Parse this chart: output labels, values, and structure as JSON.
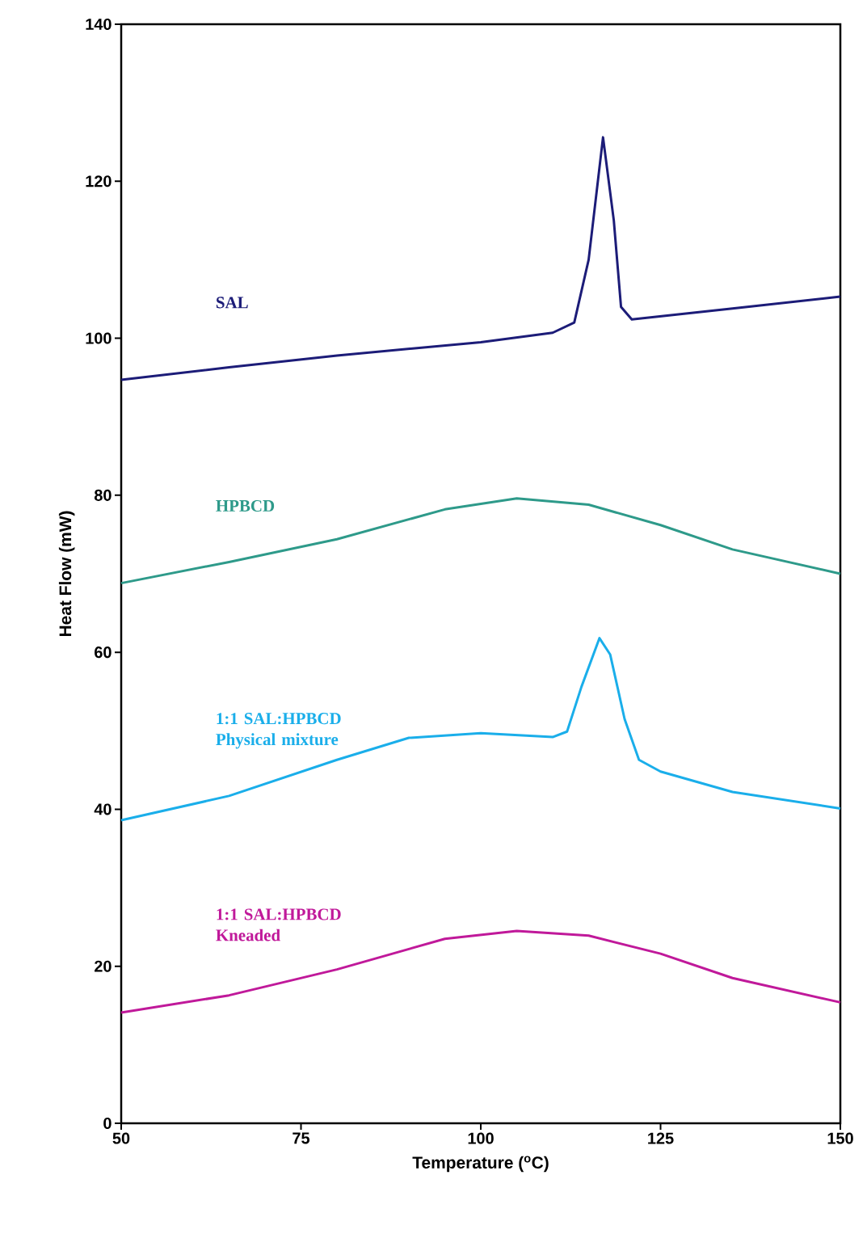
{
  "chart_data": {
    "type": "line",
    "xlabel": "Temperature ($^{o}$C)",
    "ylabel": "Heat Flow (mW)",
    "xlim": [
      50,
      150
    ],
    "ylim": [
      0,
      140
    ],
    "xticks": [
      50,
      75,
      100,
      125,
      150
    ],
    "yticks": [
      0,
      20,
      40,
      60,
      80,
      100,
      120,
      140
    ],
    "series": [
      {
        "name": "SAL",
        "color": "#1c1c78",
        "x": [
          50,
          65,
          80,
          100,
          110,
          113,
          115,
          117,
          118.5,
          119.5,
          121,
          135,
          150
        ],
        "values": [
          94.7,
          96.3,
          97.8,
          99.5,
          100.7,
          102,
          110,
          125.6,
          115,
          104,
          102.4,
          103.8,
          105.3
        ]
      },
      {
        "name": "HPBCD",
        "color": "#2e9a8a",
        "x": [
          50,
          65,
          80,
          95,
          105,
          115,
          125,
          135,
          150
        ],
        "values": [
          68.8,
          71.5,
          74.4,
          78.2,
          79.6,
          78.8,
          76.2,
          73.1,
          70
        ]
      },
      {
        "name": "1:1 SAL:HPBCD Physical mixture",
        "color": "#1aaeea",
        "x": [
          50,
          65,
          80,
          90,
          100,
          110,
          112,
          114,
          116.5,
          118,
          120,
          122,
          125,
          135,
          150
        ],
        "values": [
          38.6,
          41.7,
          46.3,
          49.1,
          49.7,
          49.2,
          49.9,
          55.6,
          61.8,
          59.7,
          51.5,
          46.3,
          44.8,
          42.2,
          40.1
        ]
      },
      {
        "name": "1:1 SAL:HPBCD Kneaded",
        "color": "#c0199a",
        "x": [
          50,
          65,
          80,
          95,
          105,
          115,
          125,
          135,
          150
        ],
        "values": [
          14.1,
          16.3,
          19.6,
          23.5,
          24.5,
          23.9,
          21.6,
          18.5,
          15.4
        ]
      }
    ]
  }
}
